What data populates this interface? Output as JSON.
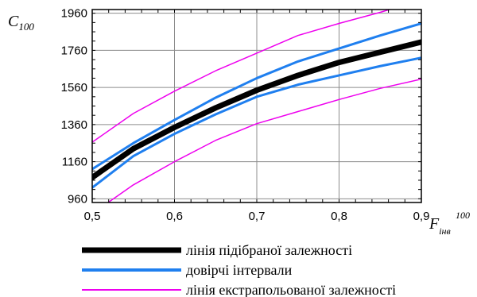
{
  "chart_data": {
    "type": "line",
    "ylabel": {
      "main": "C",
      "sub": "100"
    },
    "xlabel": {
      "main": "F",
      "sub": "інв",
      "sup": "100"
    },
    "xlim": [
      0.5,
      0.9
    ],
    "ylim": [
      940,
      1980
    ],
    "xticks": [
      0.5,
      0.6,
      0.7,
      0.8,
      0.9
    ],
    "xtick_labels": [
      "0,5",
      "0,6",
      "0,7",
      "0,8",
      "0,9"
    ],
    "yticks": [
      960,
      1160,
      1360,
      1560,
      1760,
      1960
    ],
    "ytick_labels": [
      "960",
      "1160",
      "1360",
      "1560",
      "1760",
      "1960"
    ],
    "grid": true,
    "legend_position": "bottom",
    "x": [
      0.5,
      0.55,
      0.6,
      0.65,
      0.7,
      0.75,
      0.8,
      0.85,
      0.9
    ],
    "series": [
      {
        "name": "лінія підібраної залежності",
        "color": "#000000",
        "width": 7,
        "legend_width": 7,
        "values": [
          1075,
          1230,
          1345,
          1450,
          1545,
          1625,
          1695,
          1750,
          1805
        ]
      },
      {
        "name": "довірчі інтервали",
        "color": "#1f7fef",
        "width": 3,
        "legend_width": 4,
        "values": [
          1120,
          1260,
          1385,
          1505,
          1610,
          1700,
          1770,
          1840,
          1905
        ]
      },
      {
        "name": "",
        "color": "#1f7fef",
        "width": 3,
        "legend_width": 0,
        "values": [
          1020,
          1190,
          1310,
          1415,
          1510,
          1575,
          1625,
          1675,
          1720
        ]
      },
      {
        "name": "лінія екстрапольованої залежності",
        "color": "#ee00ee",
        "width": 1.5,
        "legend_width": 2,
        "values": [
          1265,
          1420,
          1540,
          1650,
          1745,
          1840,
          1905,
          1965,
          2030
        ]
      },
      {
        "name": "",
        "color": "#ee00ee",
        "width": 1.5,
        "legend_width": 0,
        "values": [
          880,
          1035,
          1160,
          1275,
          1365,
          1430,
          1495,
          1555,
          1605
        ]
      }
    ]
  }
}
